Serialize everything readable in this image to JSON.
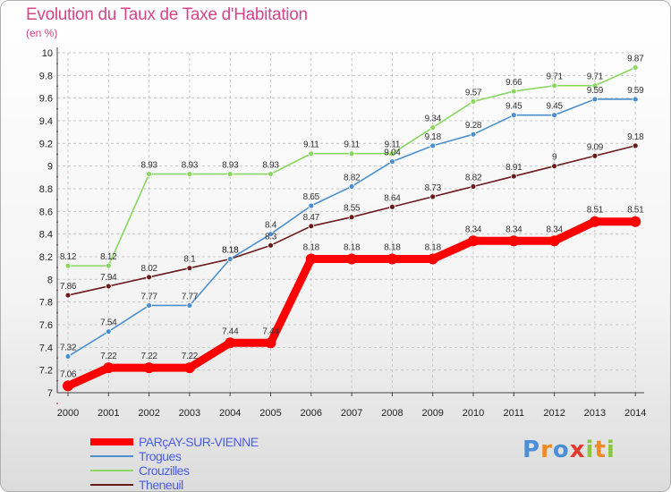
{
  "header": {
    "title": "Evolution du Taux de Taxe d'Habitation",
    "unit": "(en %)"
  },
  "logo": {
    "letters": [
      "P",
      "r",
      "o",
      "x",
      "i",
      "t",
      "i"
    ],
    "colors": [
      "#4a8fd8",
      "#f08a24",
      "#4a8fd8",
      "#e23a2e",
      "#8cc63e",
      "#f08a24",
      "#8cc63e"
    ]
  },
  "chart_data": {
    "type": "line",
    "x": [
      "2000",
      "2001",
      "2002",
      "2003",
      "2004",
      "2005",
      "2006",
      "2007",
      "2008",
      "2009",
      "2010",
      "2011",
      "2012",
      "2013",
      "2014"
    ],
    "ylim": [
      7,
      10
    ],
    "yticks": [
      "7",
      "7.2",
      "7.4",
      "7.6",
      "7.8",
      "8",
      "8.2",
      "8.4",
      "8.6",
      "8.8",
      "9",
      "9.2",
      "9.4",
      "9.6",
      "9.8",
      "10"
    ],
    "grid": true,
    "legend_position": "bottom-left",
    "title": "Evolution du Taux de Taxe d'Habitation",
    "ylabel": "(en %)",
    "series": [
      {
        "name": "PARçAY-SUR-VIENNE",
        "color": "#ff0000",
        "values": [
          7.06,
          7.22,
          7.22,
          7.22,
          7.44,
          7.44,
          8.18,
          8.18,
          8.18,
          8.18,
          8.34,
          8.34,
          8.34,
          8.51,
          8.51
        ],
        "labels": [
          "7.06",
          "7.22",
          "7.22",
          "7.22",
          "7.44",
          "7.44",
          "8.18",
          "8.18",
          "8.18",
          "8.18",
          "8.34",
          "8.34",
          "8.34",
          "8.51",
          "8.51"
        ]
      },
      {
        "name": "Trogues",
        "color": "#4a8fd0",
        "values": [
          7.32,
          7.54,
          7.77,
          7.77,
          8.18,
          8.4,
          8.65,
          8.82,
          9.04,
          9.18,
          9.28,
          9.45,
          9.45,
          9.59,
          9.59
        ],
        "labels": [
          "7.32",
          "7.54",
          "7.77",
          "7.77",
          "8.18",
          "8.4",
          "8.65",
          "8.82",
          "9.04",
          "9.18",
          "9.28",
          "9.45",
          "9.45",
          "9.59",
          "9.59"
        ]
      },
      {
        "name": "Crouzilles",
        "color": "#88d860",
        "values": [
          8.12,
          8.12,
          8.93,
          8.93,
          8.93,
          8.93,
          9.11,
          9.11,
          9.11,
          9.34,
          9.57,
          9.66,
          9.71,
          9.71,
          9.87
        ],
        "labels": [
          "8.12",
          "8.12",
          "8.93",
          "8.93",
          "8.93",
          "8.93",
          "9.11",
          "9.11",
          "9.11",
          "9.34",
          "9.57",
          "9.66",
          "9.71",
          "9.71",
          "9.87"
        ]
      },
      {
        "name": "Theneuil",
        "color": "#6a1a1a",
        "values": [
          7.86,
          7.94,
          8.02,
          8.1,
          8.18,
          8.3,
          8.47,
          8.55,
          8.64,
          8.73,
          8.82,
          8.91,
          9,
          9.09,
          9.18
        ],
        "labels": [
          "7.86",
          "7.94",
          "8.02",
          "8.1",
          "8.18",
          "8.3",
          "8.47",
          "8.55",
          "8.64",
          "8.73",
          "8.82",
          "8.91",
          "9",
          "9.09",
          "9.18"
        ]
      }
    ]
  }
}
